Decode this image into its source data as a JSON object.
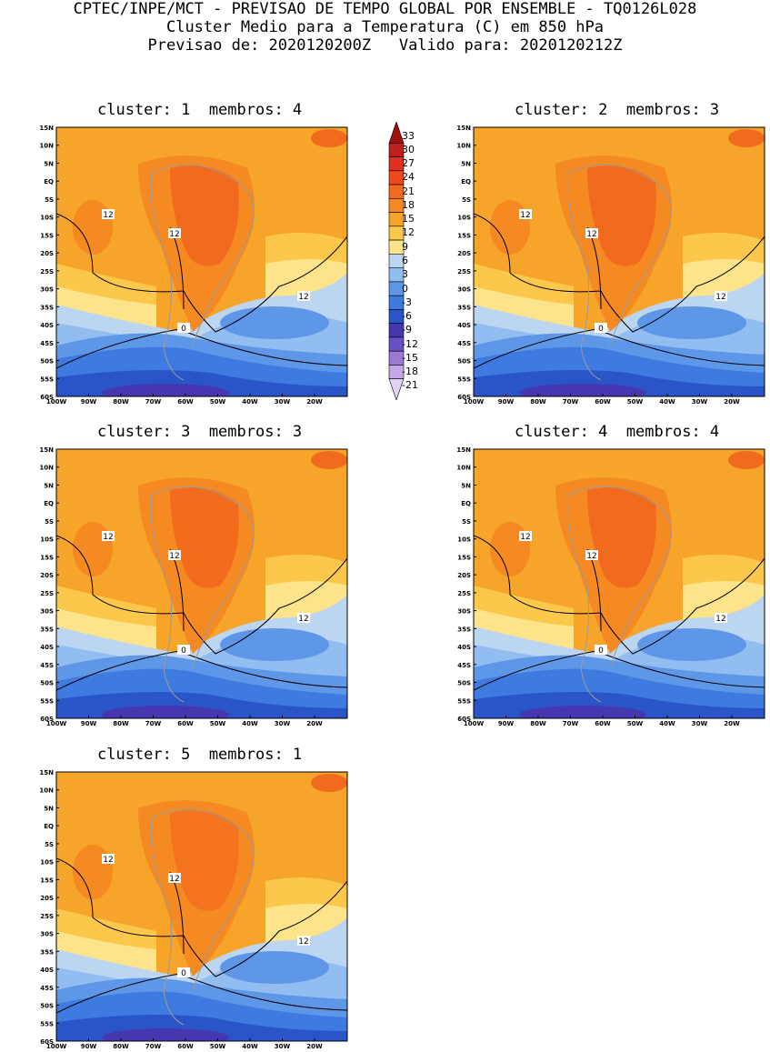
{
  "header": {
    "line1": "CPTEC/INPE/MCT - PREVISAO DE TEMPO GLOBAL POR ENSEMBLE - TQ0126L028",
    "line2": "Cluster Medio para a Temperatura (C) em 850 hPa",
    "line3": "Previsao de: 2020120200Z   Valido para: 2020120212Z"
  },
  "panels": [
    {
      "title": "cluster: 1  membros: 4"
    },
    {
      "title": "cluster: 2  membros: 3"
    },
    {
      "title": "cluster: 3  membros: 3"
    },
    {
      "title": "cluster: 4  membros: 4"
    },
    {
      "title": "cluster: 5  membros: 1"
    }
  ],
  "axes": {
    "lat_labels": [
      "15N",
      "10N",
      "5N",
      "EQ",
      "5S",
      "10S",
      "15S",
      "20S",
      "25S",
      "30S",
      "35S",
      "40S",
      "45S",
      "50S",
      "55S",
      "60S"
    ],
    "lon_labels": [
      "100W",
      "90W",
      "80W",
      "70W",
      "60W",
      "50W",
      "40W",
      "30W",
      "20W"
    ]
  },
  "contour_labels": [
    "12",
    "12",
    "12",
    "0"
  ],
  "colorbar": {
    "labels": [
      "33",
      "30",
      "27",
      "24",
      "21",
      "18",
      "15",
      "12",
      "9",
      "6",
      "3",
      "0",
      "-3",
      "-6",
      "-9",
      "-12",
      "-15",
      "-18",
      "-21"
    ],
    "colors": [
      "#a01010",
      "#c02020",
      "#e03020",
      "#f04818",
      "#f26a1e",
      "#f58a22",
      "#f7a42a",
      "#fcc84c",
      "#fde38a",
      "#bcd6f2",
      "#92bdf0",
      "#5f97e8",
      "#3f7ae0",
      "#2a55c8",
      "#4636b0",
      "#6a50c6",
      "#9b7ad6",
      "#c3a8e6",
      "#e2d4f2"
    ]
  }
}
